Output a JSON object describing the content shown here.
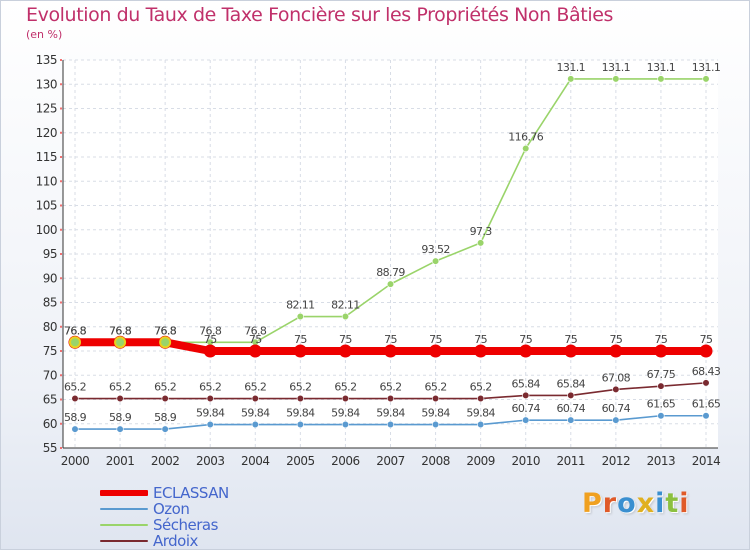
{
  "header": {
    "title": "Evolution du Taux de Taxe Foncière sur les Propriétés Non Bâties",
    "unit": "(en %)"
  },
  "logo": {
    "text": "Proxiti",
    "colors": [
      "#f0a020",
      "#e05a28",
      "#3a8fd0",
      "#e0b020",
      "#3a8fd0",
      "#8cc040",
      "#e05a28"
    ]
  },
  "chart_data": {
    "type": "line",
    "title": "Evolution du Taux de Taxe Foncière sur les Propriétés Non Bâties",
    "ylabel": "(en %)",
    "xlabel": "",
    "x": [
      "2000",
      "2001",
      "2002",
      "2003",
      "2004",
      "2005",
      "2006",
      "2007",
      "2008",
      "2009",
      "2010",
      "2011",
      "2012",
      "2013",
      "2014"
    ],
    "ylim": [
      55,
      135
    ],
    "yticks": [
      55,
      60,
      65,
      70,
      75,
      80,
      85,
      90,
      95,
      100,
      105,
      110,
      115,
      120,
      125,
      130,
      135
    ],
    "grid": true,
    "legend_position": "bottom-left",
    "series": [
      {
        "name": "ECLASSAN",
        "color": "#ee0000",
        "values": [
          76.8,
          76.8,
          76.8,
          75,
          75,
          75,
          75,
          75,
          75,
          75,
          75,
          75,
          75,
          75,
          75
        ],
        "labels": [
          "76.8",
          "76.8",
          "76.8",
          "75",
          "75",
          "75",
          "75",
          "75",
          "75",
          "75",
          "75",
          "75",
          "75",
          "75",
          "75"
        ]
      },
      {
        "name": "Ozon",
        "color": "#5a9ad0",
        "values": [
          58.9,
          58.9,
          58.9,
          59.84,
          59.84,
          59.84,
          59.84,
          59.84,
          59.84,
          59.84,
          60.74,
          60.74,
          60.74,
          61.65,
          61.65
        ],
        "labels": [
          "58.9",
          "58.9",
          "58.9",
          "59.84",
          "59.84",
          "59.84",
          "59.84",
          "59.84",
          "59.84",
          "59.84",
          "60.74",
          "60.74",
          "60.74",
          "61.65",
          "61.65"
        ]
      },
      {
        "name": "Sécheras",
        "color": "#9ad46a",
        "values": [
          76.8,
          76.8,
          76.8,
          76.8,
          76.8,
          82.11,
          82.11,
          88.79,
          93.52,
          97.3,
          116.76,
          131.1,
          131.1,
          131.1,
          131.1
        ],
        "labels": [
          "76.8",
          "76.8",
          "76.8",
          "76.8",
          "76.8",
          "82.11",
          "82.11",
          "88.79",
          "93.52",
          "97.3",
          "116.76",
          "131.1",
          "131.1",
          "131.1",
          "131.1"
        ]
      },
      {
        "name": "Ardoix",
        "color": "#7a2a30",
        "values": [
          65.2,
          65.2,
          65.2,
          65.2,
          65.2,
          65.2,
          65.2,
          65.2,
          65.2,
          65.2,
          65.84,
          65.84,
          67.08,
          67.75,
          68.43
        ],
        "labels": [
          "65.2",
          "65.2",
          "65.2",
          "65.2",
          "65.2",
          "65.2",
          "65.2",
          "65.2",
          "65.2",
          "65.2",
          "65.84",
          "65.84",
          "67.08",
          "67.75",
          "68.43"
        ]
      }
    ]
  }
}
